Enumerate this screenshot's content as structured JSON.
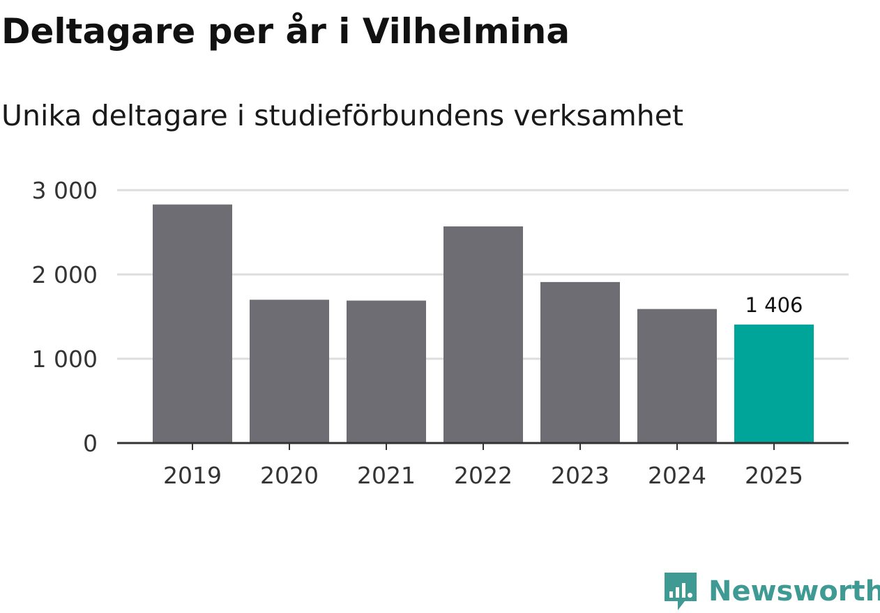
{
  "chart_data": {
    "type": "bar",
    "title": "Deltagare per år i Vilhelmina",
    "subtitle": "Unika deltagare i studieförbundens verksamhet",
    "xlabel": "",
    "ylabel": "",
    "categories": [
      "2019",
      "2020",
      "2021",
      "2022",
      "2023",
      "2024",
      "2025"
    ],
    "values": [
      2830,
      1700,
      1690,
      2570,
      1910,
      1590,
      1406
    ],
    "ylim": [
      0,
      3000
    ],
    "yticks": [
      0,
      1000,
      2000,
      3000
    ],
    "ytick_labels": [
      "0",
      "1 000",
      "2 000",
      "3 000"
    ],
    "grid": true,
    "colors": {
      "bar": "#6e6d73",
      "highlight": "#00a59a",
      "grid": "#dddddd",
      "axis": "#333333"
    },
    "highlight_index": 6,
    "annotations": [
      {
        "category": "2025",
        "text": "1 406"
      }
    ]
  },
  "branding": {
    "name": "Newsworthy",
    "icon": "newsworthy-logo-icon",
    "color": "#3f9a94"
  }
}
